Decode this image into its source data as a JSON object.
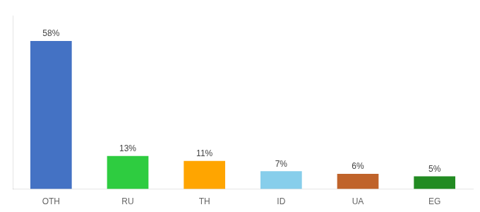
{
  "chart_data": {
    "type": "bar",
    "categories": [
      "OTH",
      "RU",
      "TH",
      "ID",
      "UA",
      "EG"
    ],
    "values": [
      58,
      13,
      11,
      7,
      6,
      5
    ],
    "value_labels": [
      "58%",
      "13%",
      "11%",
      "7%",
      "6%",
      "5%"
    ],
    "colors": [
      "#4472C4",
      "#2ECC40",
      "#FFA500",
      "#87CEEB",
      "#C0632A",
      "#228B22"
    ],
    "ylim": [
      0,
      68
    ],
    "grid": false,
    "data_labels": true,
    "tick_labels": "x"
  }
}
